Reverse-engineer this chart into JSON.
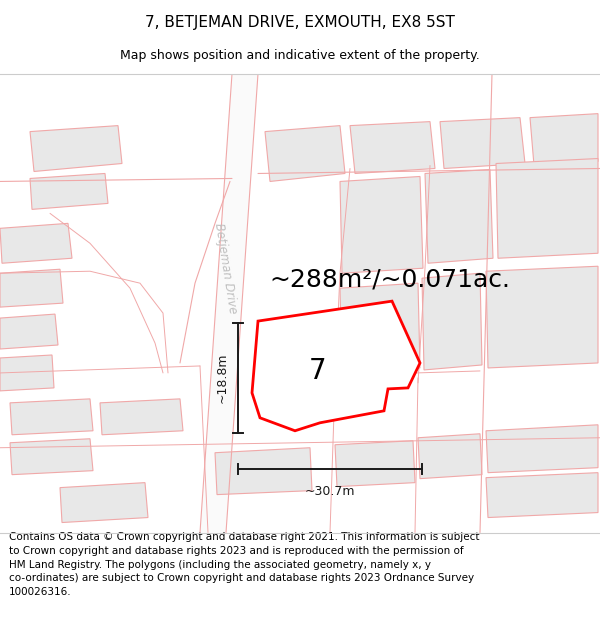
{
  "title": "7, BETJEMAN DRIVE, EXMOUTH, EX8 5ST",
  "subtitle": "Map shows position and indicative extent of the property.",
  "footer": "Contains OS data © Crown copyright and database right 2021. This information is subject\nto Crown copyright and database rights 2023 and is reproduced with the permission of\nHM Land Registry. The polygons (including the associated geometry, namely x, y\nco-ordinates) are subject to Crown copyright and database rights 2023 Ordnance Survey\n100026316.",
  "area_text": "~288m²/~0.071ac.",
  "number_label": "7",
  "dim_height": "~18.8m",
  "dim_width": "~30.7m",
  "road_label": "Betjeman Drive",
  "bg_color": "#ffffff",
  "building_fill": "#e8e8e8",
  "building_edge": "#f0a8a8",
  "road_line_color": "#f0a8a8",
  "highlight_color": "#ff0000",
  "dim_color": "#1a1a1a",
  "road_label_color": "#c0c0c0",
  "title_fontsize": 11,
  "subtitle_fontsize": 9,
  "footer_fontsize": 7.5,
  "area_fontsize": 18,
  "number_fontsize": 20,
  "road_label_fontsize": 8.5,
  "dim_fontsize": 9
}
